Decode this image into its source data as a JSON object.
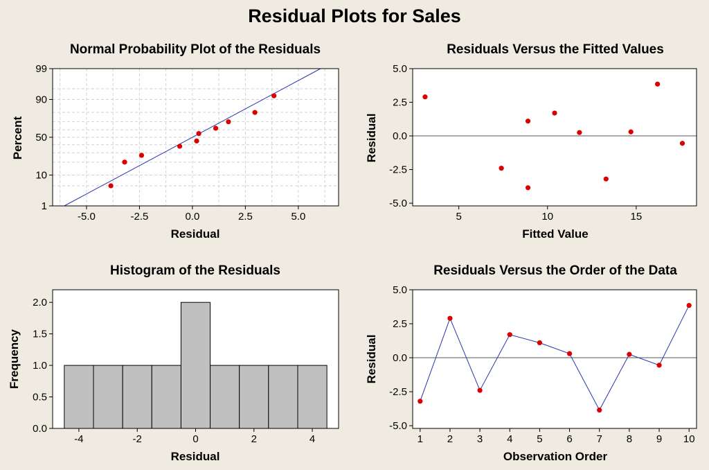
{
  "title": "Residual Plots for Sales",
  "colors": {
    "point": "#dd0000",
    "line": "#2a35b0",
    "bar": "#c0c0c0",
    "grid": "#d2d2d2",
    "background": "#efebe0"
  },
  "chart_data": [
    {
      "type": "scatter",
      "title": "Normal Probability Plot of the Residuals",
      "xlabel": "Residual",
      "ylabel": "Percent",
      "xlim": [
        -6.6,
        6.9
      ],
      "ylim": [
        1,
        99
      ],
      "y_scale": "normal-probability",
      "grid": true,
      "xticks": [
        -5.0,
        -2.5,
        0.0,
        2.5,
        5.0
      ],
      "xtick_labels": [
        "-5.0",
        "-2.5",
        "0.0",
        "2.5",
        "5.0"
      ],
      "yticks": [
        1,
        10,
        50,
        90,
        99
      ],
      "ytick_labels": [
        "1",
        "10",
        "50",
        "90",
        "99"
      ],
      "x_gridlines": [
        -6.25,
        -5.0,
        -3.75,
        -2.5,
        -1.25,
        0.0,
        1.25,
        2.5,
        3.75,
        5.0,
        6.25
      ],
      "y_gridlines": [
        5,
        10,
        20,
        30,
        40,
        50,
        60,
        70,
        80,
        90,
        95
      ],
      "points": [
        {
          "x": -3.85,
          "y": 5
        },
        {
          "x": -3.2,
          "y": 20
        },
        {
          "x": -2.4,
          "y": 27
        },
        {
          "x": -0.6,
          "y": 38
        },
        {
          "x": 0.2,
          "y": 45
        },
        {
          "x": 0.3,
          "y": 55
        },
        {
          "x": 1.1,
          "y": 62
        },
        {
          "x": 1.7,
          "y": 70
        },
        {
          "x": 2.95,
          "y": 80
        },
        {
          "x": 3.85,
          "y": 92
        }
      ],
      "fit_line": [
        {
          "x": -6.05,
          "y": 1
        },
        {
          "x": 6.05,
          "y": 99
        }
      ]
    },
    {
      "type": "scatter",
      "title": "Residuals Versus the Fitted Values",
      "xlabel": "Fitted Value",
      "ylabel": "Residual",
      "xlim": [
        2.4,
        18.4
      ],
      "ylim": [
        -5.2,
        5.0
      ],
      "xticks": [
        5,
        10,
        15
      ],
      "xtick_labels": [
        "5",
        "10",
        "15"
      ],
      "yticks": [
        -5.0,
        -2.5,
        0.0,
        2.5,
        5.0
      ],
      "ytick_labels": [
        "-5.0",
        "-2.5",
        "0.0",
        "2.5",
        "5.0"
      ],
      "reference_line": 0,
      "points": [
        {
          "x": 3.1,
          "y": 2.9
        },
        {
          "x": 7.4,
          "y": -2.4
        },
        {
          "x": 8.9,
          "y": 1.1
        },
        {
          "x": 8.9,
          "y": -3.85
        },
        {
          "x": 10.4,
          "y": 1.7
        },
        {
          "x": 11.8,
          "y": 0.25
        },
        {
          "x": 13.3,
          "y": -3.2
        },
        {
          "x": 14.7,
          "y": 0.3
        },
        {
          "x": 16.2,
          "y": 3.85
        },
        {
          "x": 17.6,
          "y": -0.55
        }
      ]
    },
    {
      "type": "bar",
      "title": "Histogram of the Residuals",
      "xlabel": "Residual",
      "ylabel": "Frequency",
      "xlim": [
        -4.9,
        4.9
      ],
      "ylim": [
        0,
        2.2
      ],
      "xticks": [
        -4,
        -2,
        0,
        2,
        4
      ],
      "xtick_labels": [
        "-4",
        "-2",
        "0",
        "2",
        "4"
      ],
      "yticks": [
        0.0,
        0.5,
        1.0,
        1.5,
        2.0
      ],
      "ytick_labels": [
        "0.0",
        "0.5",
        "1.0",
        "1.5",
        "2.0"
      ],
      "bin_width": 1,
      "bin_centers": [
        -4,
        -3,
        -2,
        -1,
        0,
        1,
        2,
        3,
        4
      ],
      "values": [
        1,
        1,
        1,
        1,
        2,
        1,
        1,
        1,
        1
      ]
    },
    {
      "type": "line",
      "title": "Residuals Versus the Order of the Data",
      "xlabel": "Observation Order",
      "ylabel": "Residual",
      "xlim": [
        0.75,
        10.25
      ],
      "ylim": [
        -5.2,
        5.0
      ],
      "xticks": [
        1,
        2,
        3,
        4,
        5,
        6,
        7,
        8,
        9,
        10
      ],
      "xtick_labels": [
        "1",
        "2",
        "3",
        "4",
        "5",
        "6",
        "7",
        "8",
        "9",
        "10"
      ],
      "yticks": [
        -5.0,
        -2.5,
        0.0,
        2.5,
        5.0
      ],
      "ytick_labels": [
        "-5.0",
        "-2.5",
        "0.0",
        "2.5",
        "5.0"
      ],
      "reference_line": 0,
      "x": [
        1,
        2,
        3,
        4,
        5,
        6,
        7,
        8,
        9,
        10
      ],
      "values": [
        -3.2,
        2.9,
        -2.4,
        1.7,
        1.1,
        0.3,
        -3.85,
        0.25,
        -0.55,
        3.85
      ]
    }
  ]
}
